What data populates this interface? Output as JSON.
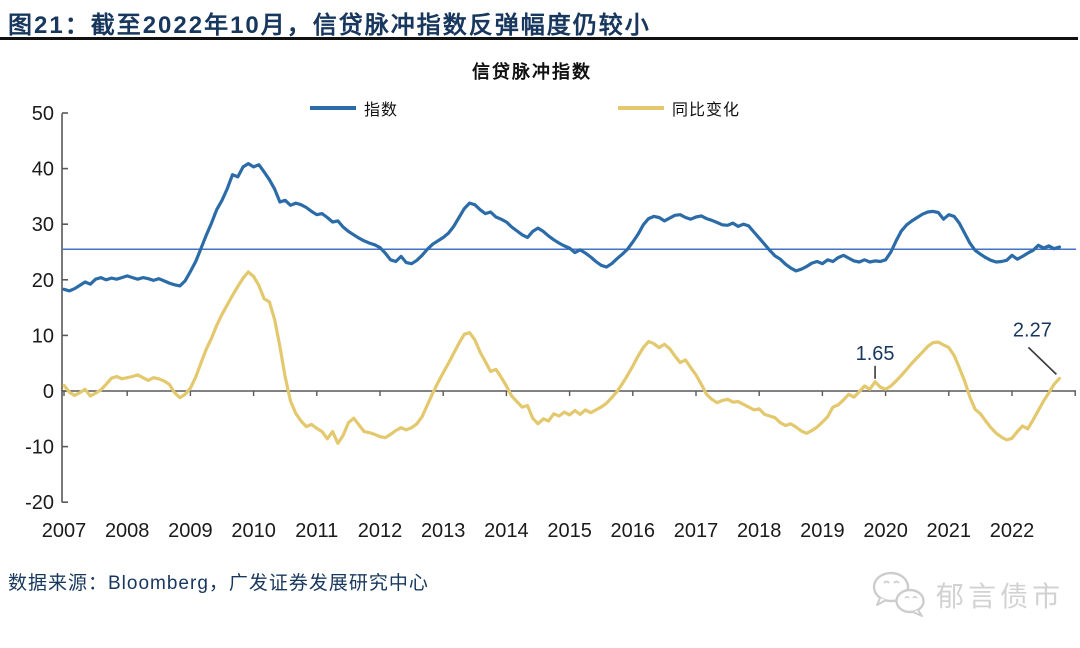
{
  "header": {
    "title": "图21：截至2022年10月，信贷脉冲指数反弹幅度仍较小"
  },
  "footer": {
    "source": "数据来源：Bloomberg，广发证券发展研究中心",
    "watermark": "郁言债市"
  },
  "chart_data": {
    "type": "line",
    "title": "信贷脉冲指数",
    "ylim": [
      -20,
      50
    ],
    "yticks": [
      50,
      40,
      30,
      20,
      10,
      0,
      -10,
      -20
    ],
    "xticks": [
      "2007",
      "2008",
      "2009",
      "2010",
      "2011",
      "2012",
      "2013",
      "2014",
      "2015",
      "2016",
      "2017",
      "2018",
      "2019",
      "2020",
      "2021",
      "2022"
    ],
    "x": {
      "start_year": 2007,
      "frequency": "monthly",
      "end": "2022-10"
    },
    "ref_line": 25.5,
    "ref_line_color": "#4472C4",
    "axis_color": "#595959",
    "annotation_color": "#17375E",
    "legend_position": "top",
    "grid": false,
    "annotations": [
      {
        "label": "1.65",
        "month_index": 154,
        "value": 1.65
      },
      {
        "label": "2.27",
        "month_index": 189,
        "value": 2.27
      }
    ],
    "series": [
      {
        "name": "指数",
        "color": "#2B6CA8",
        "values": [
          18.3,
          18.0,
          18.4,
          19.0,
          19.6,
          19.2,
          20.1,
          20.4,
          20.0,
          20.3,
          20.1,
          20.4,
          20.7,
          20.4,
          20.1,
          20.4,
          20.2,
          19.9,
          20.2,
          19.8,
          19.4,
          19.1,
          18.9,
          19.8,
          21.5,
          23.3,
          25.6,
          28.0,
          30.2,
          32.6,
          34.3,
          36.4,
          38.9,
          38.5,
          40.3,
          40.9,
          40.3,
          40.7,
          39.4,
          38.0,
          36.3,
          34.0,
          34.3,
          33.4,
          33.8,
          33.5,
          33.0,
          32.3,
          31.7,
          31.9,
          31.2,
          30.4,
          30.6,
          29.5,
          28.7,
          28.1,
          27.5,
          27.0,
          26.6,
          26.3,
          25.8,
          24.8,
          23.6,
          23.3,
          24.2,
          23.1,
          22.9,
          23.5,
          24.4,
          25.5,
          26.4,
          27.0,
          27.6,
          28.4,
          29.6,
          31.2,
          32.8,
          33.8,
          33.5,
          32.6,
          31.9,
          32.2,
          31.3,
          30.9,
          30.4,
          29.5,
          28.8,
          28.1,
          27.6,
          28.7,
          29.3,
          28.7,
          27.9,
          27.2,
          26.6,
          26.1,
          25.7,
          24.9,
          25.4,
          24.8,
          24.1,
          23.3,
          22.6,
          22.3,
          22.9,
          23.8,
          24.6,
          25.5,
          26.8,
          28.2,
          29.9,
          31.0,
          31.4,
          31.2,
          30.6,
          31.1,
          31.6,
          31.7,
          31.2,
          30.9,
          31.3,
          31.5,
          31.0,
          30.7,
          30.3,
          29.9,
          29.8,
          30.2,
          29.6,
          30.0,
          29.7,
          28.6,
          27.5,
          26.4,
          25.3,
          24.3,
          23.7,
          22.8,
          22.1,
          21.6,
          21.9,
          22.4,
          23.0,
          23.3,
          22.9,
          23.6,
          23.3,
          24.0,
          24.4,
          23.9,
          23.4,
          23.2,
          23.6,
          23.2,
          23.4,
          23.3,
          23.6,
          25.0,
          27.0,
          28.8,
          29.9,
          30.6,
          31.2,
          31.8,
          32.2,
          32.3,
          32.1,
          30.9,
          31.7,
          31.4,
          30.2,
          28.4,
          26.6,
          25.3,
          24.6,
          24.0,
          23.5,
          23.2,
          23.3,
          23.5,
          24.4,
          23.7,
          24.2,
          24.8,
          25.3,
          26.2,
          25.7,
          26.1,
          25.6,
          25.9
        ]
      },
      {
        "name": "同比变化",
        "color": "#E3C86E",
        "values": [
          1.0,
          -0.2,
          -0.8,
          -0.3,
          0.3,
          -0.9,
          -0.4,
          0.2,
          1.2,
          2.3,
          2.6,
          2.2,
          2.4,
          2.6,
          2.9,
          2.4,
          1.9,
          2.4,
          2.2,
          1.8,
          1.2,
          -0.3,
          -1.2,
          -0.6,
          0.5,
          2.5,
          5.0,
          7.5,
          9.5,
          11.8,
          13.8,
          15.5,
          17.2,
          18.8,
          20.3,
          21.4,
          20.6,
          19.0,
          16.6,
          16.0,
          12.8,
          8.0,
          2.5,
          -1.8,
          -4.0,
          -5.4,
          -6.4,
          -6.0,
          -6.7,
          -7.3,
          -8.6,
          -7.3,
          -9.4,
          -8.0,
          -5.7,
          -4.9,
          -6.1,
          -7.3,
          -7.5,
          -7.8,
          -8.2,
          -8.4,
          -7.8,
          -7.1,
          -6.6,
          -7.0,
          -6.6,
          -5.9,
          -4.6,
          -2.5,
          -0.4,
          1.5,
          3.3,
          5.0,
          6.8,
          8.6,
          10.2,
          10.5,
          9.2,
          7.0,
          5.3,
          3.5,
          3.9,
          2.5,
          0.9,
          -0.9,
          -1.9,
          -2.9,
          -2.6,
          -4.9,
          -5.9,
          -5.0,
          -5.4,
          -4.1,
          -4.5,
          -3.8,
          -4.3,
          -3.5,
          -4.2,
          -3.4,
          -3.9,
          -3.4,
          -2.9,
          -2.2,
          -1.2,
          -0.1,
          1.3,
          2.8,
          4.5,
          6.3,
          7.8,
          8.9,
          8.5,
          7.8,
          8.4,
          7.6,
          6.3,
          5.1,
          5.6,
          4.2,
          2.9,
          1.2,
          -0.6,
          -1.5,
          -2.1,
          -1.7,
          -1.5,
          -2.0,
          -1.9,
          -2.4,
          -2.9,
          -3.4,
          -3.2,
          -4.2,
          -4.5,
          -4.8,
          -5.7,
          -6.2,
          -5.9,
          -6.5,
          -7.2,
          -7.6,
          -7.1,
          -6.5,
          -5.6,
          -4.6,
          -2.9,
          -2.5,
          -1.6,
          -0.6,
          -1.1,
          -0.1,
          0.9,
          0.3,
          1.65,
          0.7,
          0.3,
          0.9,
          1.8,
          2.8,
          3.9,
          5.0,
          6.0,
          7.0,
          8.0,
          8.7,
          8.8,
          8.3,
          7.8,
          6.4,
          4.2,
          1.8,
          -1.1,
          -3.3,
          -4.1,
          -5.4,
          -6.6,
          -7.6,
          -8.3,
          -8.8,
          -8.5,
          -7.3,
          -6.3,
          -6.8,
          -5.2,
          -3.5,
          -1.8,
          -0.3,
          1.2,
          2.27
        ]
      }
    ]
  }
}
